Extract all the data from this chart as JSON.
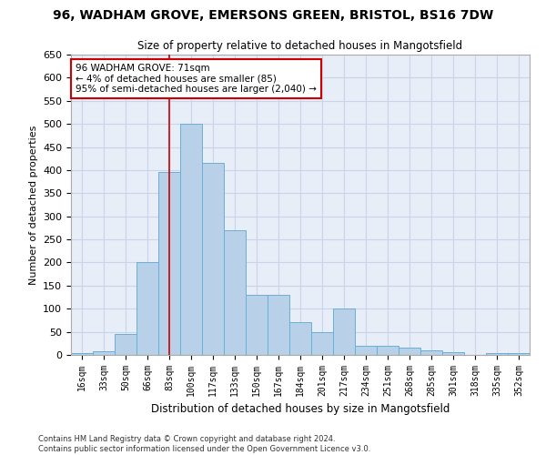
{
  "title_line1": "96, WADHAM GROVE, EMERSONS GREEN, BRISTOL, BS16 7DW",
  "title_line2": "Size of property relative to detached houses in Mangotsfield",
  "xlabel": "Distribution of detached houses by size in Mangotsfield",
  "ylabel": "Number of detached properties",
  "categories": [
    "16sqm",
    "33sqm",
    "50sqm",
    "66sqm",
    "83sqm",
    "100sqm",
    "117sqm",
    "133sqm",
    "150sqm",
    "167sqm",
    "184sqm",
    "201sqm",
    "217sqm",
    "234sqm",
    "251sqm",
    "268sqm",
    "285sqm",
    "301sqm",
    "318sqm",
    "335sqm",
    "352sqm"
  ],
  "bar_heights": [
    3,
    8,
    45,
    200,
    395,
    500,
    415,
    270,
    130,
    130,
    70,
    50,
    100,
    20,
    20,
    15,
    10,
    5,
    0,
    3,
    3
  ],
  "bar_color": "#b8d0e8",
  "bar_edge_color": "#6baed6",
  "annotation_line1": "96 WADHAM GROVE: 71sqm",
  "annotation_line2": "← 4% of detached houses are smaller (85)",
  "annotation_line3": "95% of semi-detached houses are larger (2,040) →",
  "annotation_box_color": "#ffffff",
  "annotation_box_edge_color": "#cc0000",
  "vline_color": "#cc0000",
  "vline_x": 4.0,
  "ylim": [
    0,
    650
  ],
  "yticks": [
    0,
    50,
    100,
    150,
    200,
    250,
    300,
    350,
    400,
    450,
    500,
    550,
    600,
    650
  ],
  "grid_color": "#c8d4e8",
  "background_color": "#e8eef8",
  "footer_line1": "Contains HM Land Registry data © Crown copyright and database right 2024.",
  "footer_line2": "Contains public sector information licensed under the Open Government Licence v3.0."
}
